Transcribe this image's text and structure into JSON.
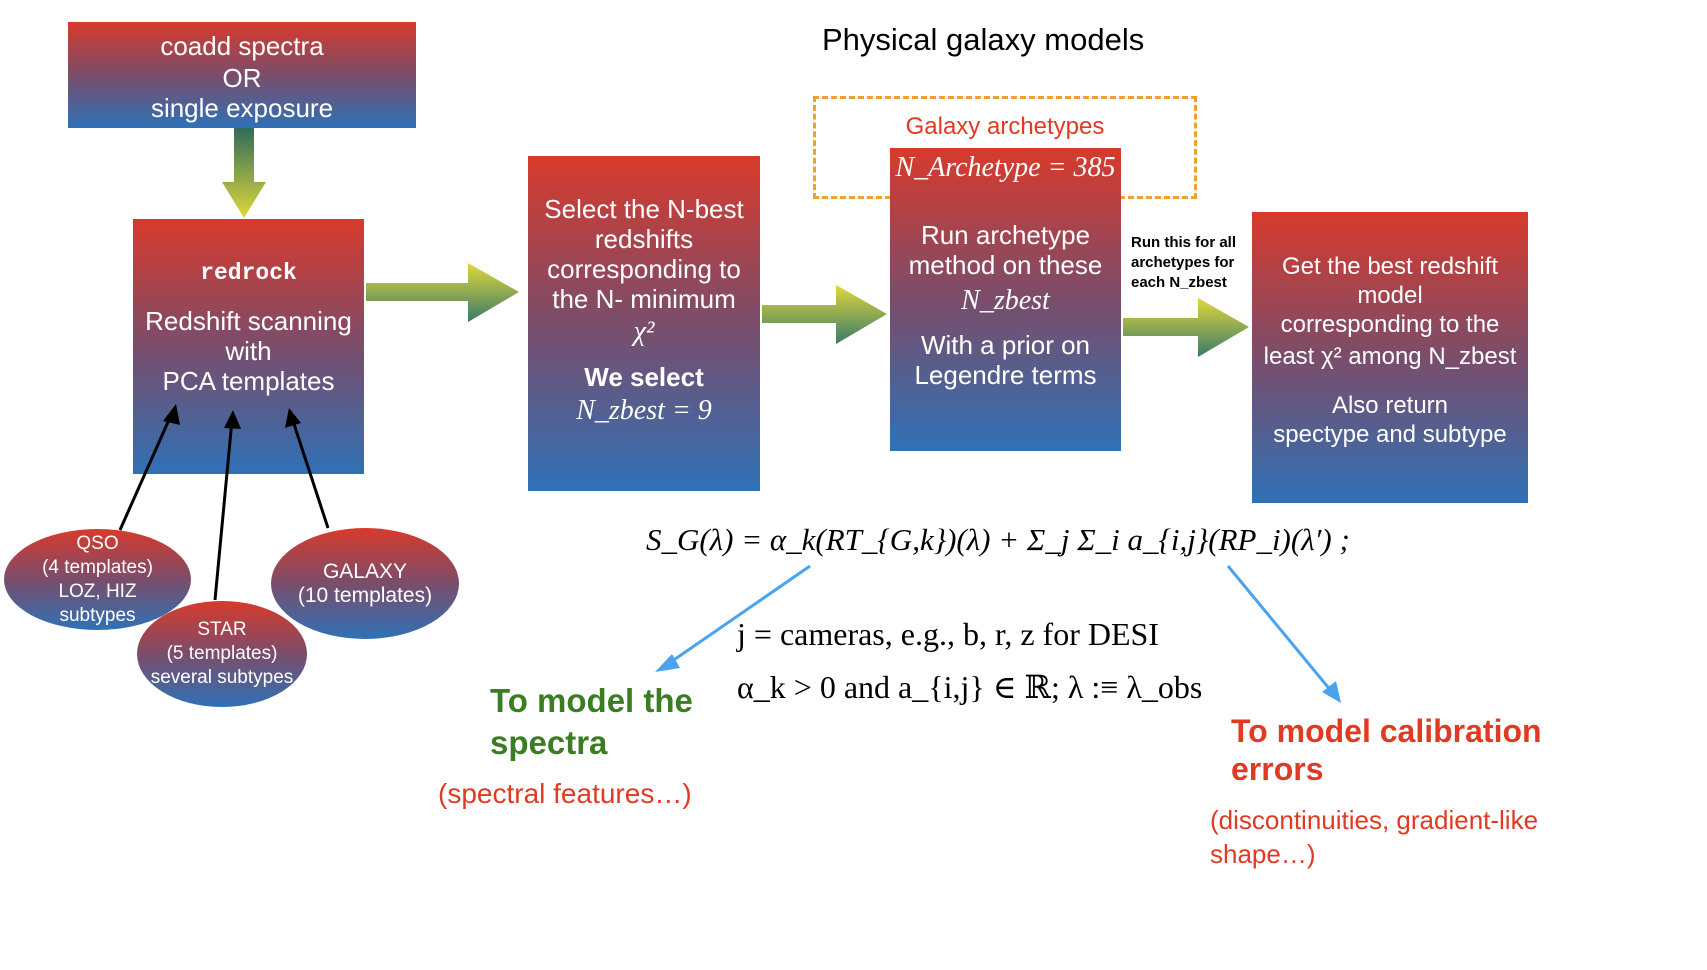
{
  "title": "Physical galaxy models",
  "input_box": {
    "line1": "coadd spectra",
    "line2": "OR",
    "line3": "single exposure"
  },
  "redrock_box": {
    "name": "redrock",
    "line1": "Redshift scanning",
    "line2": "with",
    "line3": "PCA templates"
  },
  "template_groups": [
    {
      "name": "QSO",
      "line2": "(4 templates)",
      "line3": "LOZ, HIZ",
      "line4": "subtypes"
    },
    {
      "name": "STAR",
      "line2": "(5 templates)",
      "line3": "several subtypes"
    },
    {
      "name": "GALAXY",
      "line2": "(10 templates)"
    }
  ],
  "select_box": {
    "line1": "Select the N-best",
    "line2": "redshifts",
    "line3": "corresponding to",
    "line4": "the N- minimum",
    "chi2": "χ²",
    "select_label": "We select",
    "nzbest_eq": "N_zbest = 9"
  },
  "archetype_box": {
    "header": "Galaxy archetypes",
    "narchetype": "N_Archetype = 385",
    "line1": "Run archetype",
    "line2": "method on these",
    "nzbest": "N_zbest",
    "line3": "With a prior on",
    "line4": "Legendre terms"
  },
  "arrow_note": {
    "line1": "Run this for all",
    "line2": "archetypes for",
    "line3": "each N_zbest"
  },
  "result_box": {
    "line1": "Get the best redshift",
    "line2": "model",
    "line3": "corresponding to the",
    "line4": "least χ² among N_zbest",
    "line5": "Also return",
    "line6": "spectype and subtype"
  },
  "equation": {
    "main": "S_G(λ) = α_k(RT_{G,k})(λ) + Σ_j Σ_i a_{i,j}(RP_i)(λ′) ;",
    "cameras": "j = cameras, e.g., b, r, z for DESI",
    "constraints": "α_k > 0 and a_{i,j} ∈ ℝ; λ :≡ λ_obs"
  },
  "annotations": {
    "spectra_title_1": "To model the",
    "spectra_title_2": "spectra",
    "spectra_sub": "(spectral features…)",
    "calib_title_1": "To model calibration",
    "calib_title_2": "errors",
    "calib_sub_1": "(discontinuities, gradient-like",
    "calib_sub_2": "shape…)"
  },
  "colors": {
    "box_top": "#d83a2c",
    "box_bottom": "#2f71b6",
    "green_text": "#3a7d22",
    "red_text": "#e03a22",
    "dash": "#f0a030",
    "blue_arrow": "#4aa3ef"
  }
}
